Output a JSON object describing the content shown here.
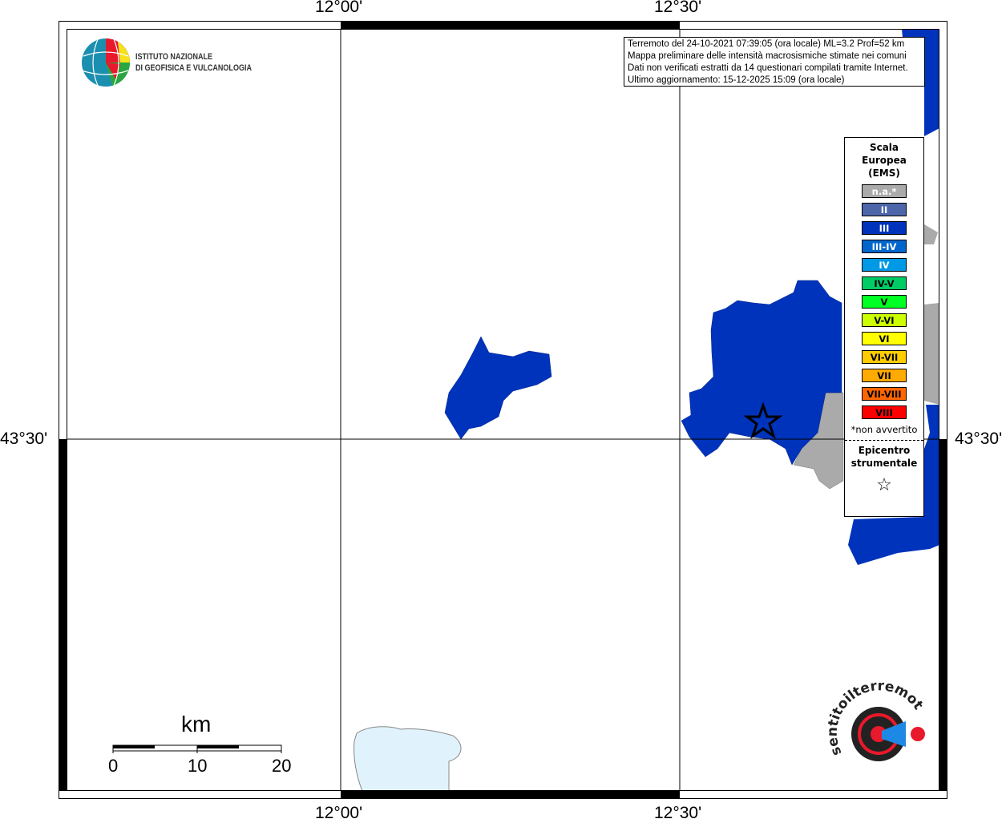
{
  "map": {
    "lon_labels": [
      "12°00'",
      "12°30'"
    ],
    "lat_labels": [
      "43°30'"
    ],
    "colors": {
      "land_intensity_III": "#0033bb",
      "not_felt": "#aaaaaa",
      "lake": "#e0f2fc"
    }
  },
  "info": {
    "line1": "Terremoto del 24-10-2021 07:39:05 (ora locale) ML=3.2 Prof=52 km",
    "line2": "Mappa preliminare delle intensità macrosismiche stimate nei comuni",
    "line3": "Dati non verificati estratti da 14 questionari compilati tramite Internet.",
    "line4": "Ultimo aggiornamento: 15-12-2025 15:09 (ora locale)"
  },
  "legend": {
    "title": "Scala Europea (EMS)",
    "items": [
      {
        "label": "n.a.*",
        "color": "#aaaaaa",
        "text": "#ffffff"
      },
      {
        "label": "II",
        "color": "#4d66aa",
        "text": "#ffffff"
      },
      {
        "label": "III",
        "color": "#0033bb",
        "text": "#ffffff"
      },
      {
        "label": "III-IV",
        "color": "#0066cc",
        "text": "#ffffff"
      },
      {
        "label": "IV",
        "color": "#0099e6",
        "text": "#ffffff"
      },
      {
        "label": "IV-V",
        "color": "#00cc66",
        "text": "#000000"
      },
      {
        "label": "V",
        "color": "#00ff22",
        "text": "#000000"
      },
      {
        "label": "V-VI",
        "color": "#ccff00",
        "text": "#000000"
      },
      {
        "label": "VI",
        "color": "#ffff00",
        "text": "#000000"
      },
      {
        "label": "VI-VII",
        "color": "#ffcc00",
        "text": "#000000"
      },
      {
        "label": "VII",
        "color": "#ffaa00",
        "text": "#000000"
      },
      {
        "label": "VII-VIII",
        "color": "#ff6600",
        "text": "#000000"
      },
      {
        "label": "VIII",
        "color": "#ff0000",
        "text": "#000000"
      }
    ],
    "not_felt_note": "*non avvertito",
    "epicenter_label": "Epicentro strumentale",
    "epicenter_icon": "star-outline-icon"
  },
  "logo": {
    "line1": "ISTITUTO NAZIONALE",
    "line2": "DI GEOFISICA E VULCANOLOGIA"
  },
  "haisentito_logo": "www.haisentitoilterremoto.it",
  "scalebar": {
    "unit": "km",
    "labels": [
      "0",
      "10",
      "20"
    ]
  }
}
